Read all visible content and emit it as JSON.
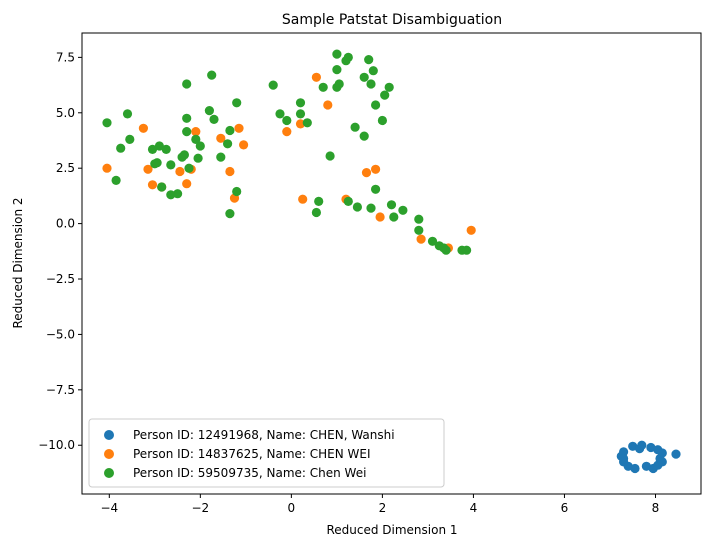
{
  "chart_data": {
    "type": "scatter",
    "title": "Sample Patstat Disambiguation",
    "xlabel": "Reduced Dimension 1",
    "ylabel": "Reduced Dimension 2",
    "xlim": [
      -4.6,
      9.0
    ],
    "ylim": [
      -12.2,
      8.6
    ],
    "xticks": [
      -4,
      -2,
      0,
      2,
      4,
      6,
      8
    ],
    "xtick_labels": [
      "−4",
      "−2",
      "0",
      "2",
      "4",
      "6",
      "8"
    ],
    "yticks": [
      7.5,
      5.0,
      2.5,
      0.0,
      -2.5,
      -5.0,
      -7.5,
      -10.0
    ],
    "ytick_labels": [
      "7.5",
      "5.0",
      "2.5",
      "0.0",
      "−2.5",
      "−5.0",
      "−7.5",
      "−10.0"
    ],
    "grid": false,
    "legend_position": "lower-left",
    "series": [
      {
        "name": "Person ID: 12491968, Name: CHEN, Wanshi",
        "color": "#1f77b4",
        "points": [
          [
            7.25,
            -10.5
          ],
          [
            7.3,
            -10.3
          ],
          [
            7.3,
            -10.75
          ],
          [
            7.4,
            -10.95
          ],
          [
            7.5,
            -10.05
          ],
          [
            7.55,
            -11.05
          ],
          [
            7.65,
            -10.15
          ],
          [
            7.7,
            -10.0
          ],
          [
            7.8,
            -10.95
          ],
          [
            7.9,
            -10.1
          ],
          [
            7.95,
            -11.05
          ],
          [
            8.05,
            -10.2
          ],
          [
            8.05,
            -10.9
          ],
          [
            8.1,
            -10.6
          ],
          [
            8.15,
            -10.35
          ],
          [
            8.15,
            -10.75
          ],
          [
            8.45,
            -10.4
          ],
          [
            7.3,
            -10.6
          ]
        ]
      },
      {
        "name": "Person ID: 14837625, Name: CHEN WEI",
        "color": "#ff7f0e",
        "points": [
          [
            -4.05,
            2.5
          ],
          [
            -3.25,
            4.3
          ],
          [
            -3.15,
            2.45
          ],
          [
            -3.05,
            1.75
          ],
          [
            -2.85,
            1.65
          ],
          [
            -2.45,
            2.35
          ],
          [
            -2.3,
            1.8
          ],
          [
            -2.2,
            2.45
          ],
          [
            -2.1,
            4.15
          ],
          [
            -1.55,
            3.85
          ],
          [
            -1.35,
            2.35
          ],
          [
            -1.25,
            1.15
          ],
          [
            -1.15,
            4.3
          ],
          [
            -1.05,
            3.55
          ],
          [
            -0.1,
            4.15
          ],
          [
            0.2,
            4.5
          ],
          [
            0.25,
            1.1
          ],
          [
            0.55,
            6.6
          ],
          [
            0.8,
            5.35
          ],
          [
            1.2,
            1.1
          ],
          [
            1.65,
            2.3
          ],
          [
            1.85,
            2.45
          ],
          [
            1.95,
            0.3
          ],
          [
            2.85,
            -0.7
          ],
          [
            3.45,
            -1.1
          ],
          [
            3.95,
            -0.3
          ]
        ]
      },
      {
        "name": "Person ID: 59509735, Name: Chen Wei",
        "color": "#2ca02c",
        "points": [
          [
            -4.05,
            4.55
          ],
          [
            -3.85,
            1.95
          ],
          [
            -3.75,
            3.4
          ],
          [
            -3.6,
            4.95
          ],
          [
            -3.55,
            3.8
          ],
          [
            -3.05,
            3.35
          ],
          [
            -3.0,
            2.7
          ],
          [
            -2.95,
            2.75
          ],
          [
            -2.9,
            3.5
          ],
          [
            -2.85,
            1.65
          ],
          [
            -2.75,
            3.35
          ],
          [
            -2.65,
            2.65
          ],
          [
            -2.65,
            1.3
          ],
          [
            -2.5,
            1.35
          ],
          [
            -2.4,
            3.0
          ],
          [
            -2.35,
            3.1
          ],
          [
            -2.3,
            6.3
          ],
          [
            -2.3,
            4.75
          ],
          [
            -2.3,
            4.15
          ],
          [
            -2.25,
            2.5
          ],
          [
            -2.1,
            3.8
          ],
          [
            -2.05,
            2.95
          ],
          [
            -2.0,
            3.5
          ],
          [
            -1.8,
            5.1
          ],
          [
            -1.75,
            6.7
          ],
          [
            -1.7,
            4.7
          ],
          [
            -1.55,
            3.0
          ],
          [
            -1.4,
            3.6
          ],
          [
            -1.35,
            0.45
          ],
          [
            -1.35,
            4.2
          ],
          [
            -1.2,
            5.45
          ],
          [
            -1.2,
            1.45
          ],
          [
            -0.4,
            6.25
          ],
          [
            -0.25,
            4.95
          ],
          [
            -0.1,
            4.65
          ],
          [
            0.2,
            5.45
          ],
          [
            0.2,
            4.95
          ],
          [
            0.35,
            4.55
          ],
          [
            0.55,
            0.5
          ],
          [
            0.6,
            1.0
          ],
          [
            0.7,
            6.15
          ],
          [
            0.85,
            3.05
          ],
          [
            1.0,
            7.65
          ],
          [
            1.0,
            6.95
          ],
          [
            1.0,
            6.15
          ],
          [
            1.05,
            6.3
          ],
          [
            1.2,
            7.35
          ],
          [
            1.25,
            7.5
          ],
          [
            1.25,
            1.0
          ],
          [
            1.45,
            0.75
          ],
          [
            1.4,
            4.35
          ],
          [
            1.6,
            3.95
          ],
          [
            1.6,
            6.6
          ],
          [
            1.7,
            7.4
          ],
          [
            1.75,
            6.3
          ],
          [
            1.75,
            0.7
          ],
          [
            1.8,
            6.9
          ],
          [
            1.85,
            5.35
          ],
          [
            1.85,
            1.55
          ],
          [
            2.0,
            4.65
          ],
          [
            2.05,
            5.8
          ],
          [
            2.15,
            6.15
          ],
          [
            2.2,
            0.85
          ],
          [
            2.25,
            0.3
          ],
          [
            2.45,
            0.6
          ],
          [
            2.8,
            0.2
          ],
          [
            2.8,
            -0.3
          ],
          [
            3.1,
            -0.8
          ],
          [
            3.25,
            -1.0
          ],
          [
            3.35,
            -1.1
          ],
          [
            3.4,
            -1.2
          ],
          [
            3.75,
            -1.2
          ],
          [
            3.85,
            -1.2
          ]
        ]
      }
    ]
  }
}
